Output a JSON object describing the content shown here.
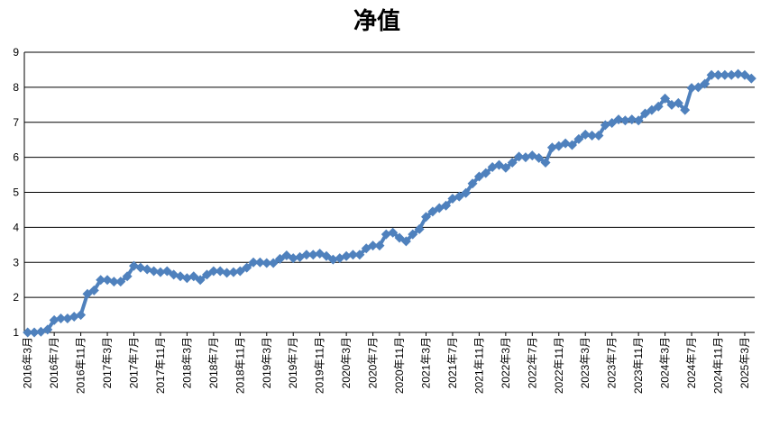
{
  "chart_data": {
    "type": "line",
    "title": "净值",
    "categories": [
      "2016年3月",
      null,
      null,
      null,
      "2016年7月",
      null,
      null,
      null,
      "2016年11月",
      null,
      null,
      null,
      "2017年3月",
      null,
      null,
      null,
      "2017年7月",
      null,
      null,
      null,
      "2017年11月",
      null,
      null,
      null,
      "2018年3月",
      null,
      null,
      null,
      "2018年7月",
      null,
      null,
      null,
      "2018年11月",
      null,
      null,
      null,
      "2019年3月",
      null,
      null,
      null,
      "2019年7月",
      null,
      null,
      null,
      "2019年11月",
      null,
      null,
      null,
      "2020年3月",
      null,
      null,
      null,
      "2020年7月",
      null,
      null,
      null,
      "2020年11月",
      null,
      null,
      null,
      "2021年3月",
      null,
      null,
      null,
      "2021年7月",
      null,
      null,
      null,
      "2021年11月",
      null,
      null,
      null,
      "2022年3月",
      null,
      null,
      null,
      "2022年7月",
      null,
      null,
      null,
      "2022年11月",
      null,
      null,
      null,
      "2023年3月",
      null,
      null,
      null,
      "2023年7月",
      null,
      null,
      null,
      "2023年11月",
      null,
      null,
      null,
      "2024年3月",
      null,
      null,
      null,
      "2024年7月",
      null,
      null,
      null,
      "2024年11月",
      null,
      null,
      null,
      "2025年3月",
      null
    ],
    "values": [
      1.0,
      1.0,
      1.02,
      1.08,
      1.35,
      1.4,
      1.4,
      1.45,
      1.5,
      2.1,
      2.2,
      2.5,
      2.5,
      2.45,
      2.45,
      2.6,
      2.9,
      2.85,
      2.8,
      2.75,
      2.72,
      2.75,
      2.65,
      2.6,
      2.55,
      2.6,
      2.5,
      2.65,
      2.75,
      2.75,
      2.7,
      2.72,
      2.75,
      2.85,
      3.0,
      3.0,
      2.98,
      2.98,
      3.1,
      3.2,
      3.12,
      3.15,
      3.22,
      3.22,
      3.25,
      3.18,
      3.08,
      3.12,
      3.18,
      3.22,
      3.22,
      3.4,
      3.48,
      3.48,
      3.8,
      3.85,
      3.7,
      3.6,
      3.8,
      3.95,
      4.3,
      4.45,
      4.55,
      4.62,
      4.82,
      4.88,
      4.98,
      5.25,
      5.45,
      5.55,
      5.72,
      5.78,
      5.7,
      5.85,
      6.02,
      6.0,
      6.05,
      5.98,
      5.85,
      6.28,
      6.32,
      6.4,
      6.35,
      6.52,
      6.65,
      6.62,
      6.62,
      6.92,
      6.98,
      7.08,
      7.05,
      7.08,
      7.05,
      7.25,
      7.35,
      7.45,
      7.68,
      7.5,
      7.55,
      7.35,
      7.98,
      8.0,
      8.1,
      8.35,
      8.35,
      8.35,
      8.35,
      8.38,
      8.35,
      8.25
    ],
    "color": "#4f81bd",
    "ylim": [
      1,
      9
    ],
    "yticks": [
      1,
      2,
      3,
      4,
      5,
      6,
      7,
      8,
      9
    ],
    "grid": true
  }
}
